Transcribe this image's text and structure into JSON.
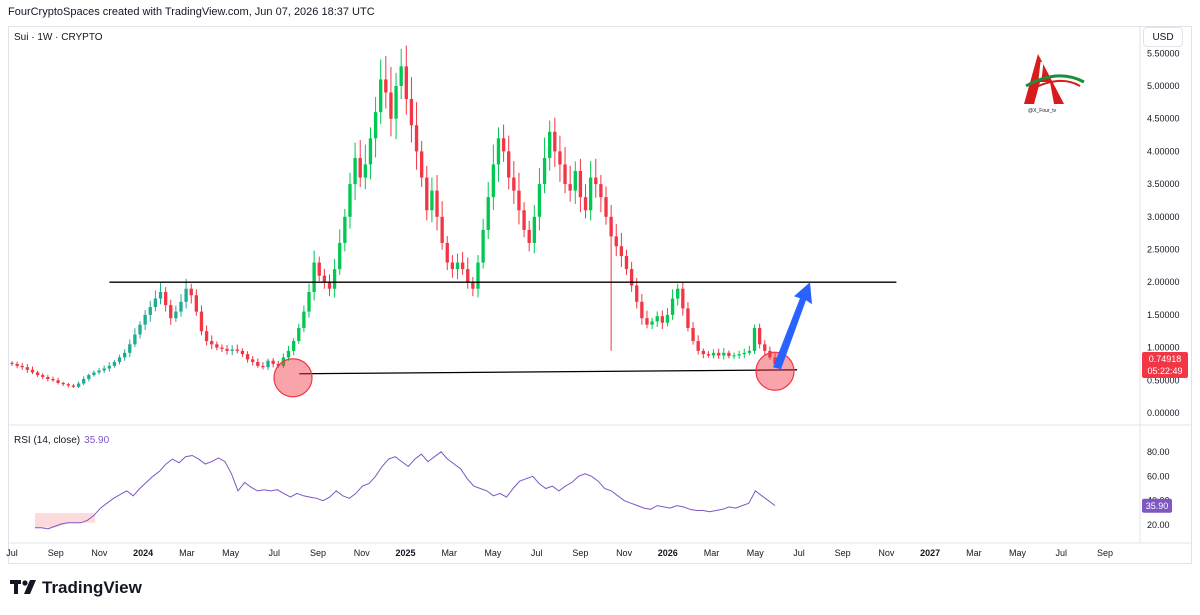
{
  "header": {
    "text": "FourCryptoSpaces created with TradingView.com, Jun 07, 2026 18:37 UTC"
  },
  "symbol": {
    "label": "Sui · 1W · CRYPTO"
  },
  "currency": "USD",
  "rsi": {
    "label": "RSI (14, close)",
    "value": "35.90"
  },
  "price_tag": {
    "price": "0.74918",
    "countdown": "05:22:49"
  },
  "brand": {
    "handle": "@X_Four_tv"
  },
  "footer": {
    "brand": "TradingView"
  },
  "colors": {
    "up": "#22ab94",
    "up_bright": "#00c853",
    "down": "#f23645",
    "rsi_line": "#7e57c2",
    "arrow": "#2962ff",
    "circle": "#f23645",
    "price_tag_bg": "#f23645",
    "rsi_tag_bg": "#7e57c2"
  },
  "chart_data": {
    "type": "candlestick",
    "title": "Sui · 1W · CRYPTO",
    "price_axis": {
      "ticks": [
        "5.50000",
        "5.00000",
        "4.50000",
        "4.00000",
        "3.50000",
        "3.00000",
        "2.50000",
        "2.00000",
        "1.50000",
        "1.00000",
        "0.50000",
        "0.00000"
      ],
      "ylim": [
        0,
        5.55
      ]
    },
    "rsi_axis": {
      "ticks": [
        "80.00",
        "60.00",
        "40.00",
        "20.00"
      ],
      "ylim": [
        12,
        88
      ]
    },
    "time_axis": [
      {
        "label": "Jul",
        "bold": false
      },
      {
        "label": "Sep",
        "bold": false
      },
      {
        "label": "Nov",
        "bold": false
      },
      {
        "label": "2024",
        "bold": true
      },
      {
        "label": "Mar",
        "bold": false
      },
      {
        "label": "May",
        "bold": false
      },
      {
        "label": "Jul",
        "bold": false
      },
      {
        "label": "Sep",
        "bold": false
      },
      {
        "label": "Nov",
        "bold": false
      },
      {
        "label": "2025",
        "bold": true
      },
      {
        "label": "Mar",
        "bold": false
      },
      {
        "label": "May",
        "bold": false
      },
      {
        "label": "Jul",
        "bold": false
      },
      {
        "label": "Sep",
        "bold": false
      },
      {
        "label": "Nov",
        "bold": false
      },
      {
        "label": "2026",
        "bold": true
      },
      {
        "label": "Mar",
        "bold": false
      },
      {
        "label": "May",
        "bold": false
      },
      {
        "label": "Jul",
        "bold": false
      },
      {
        "label": "Sep",
        "bold": false
      },
      {
        "label": "Nov",
        "bold": false
      },
      {
        "label": "2027",
        "bold": true
      },
      {
        "label": "Mar",
        "bold": false
      },
      {
        "label": "May",
        "bold": false
      },
      {
        "label": "Jul",
        "bold": false
      },
      {
        "label": "Sep",
        "bold": false
      }
    ],
    "price_path": [
      0.75,
      0.72,
      0.7,
      0.66,
      0.62,
      0.58,
      0.55,
      0.52,
      0.5,
      0.46,
      0.44,
      0.42,
      0.4,
      0.45,
      0.52,
      0.58,
      0.62,
      0.65,
      0.68,
      0.72,
      0.78,
      0.85,
      0.92,
      1.05,
      1.2,
      1.35,
      1.5,
      1.62,
      1.75,
      1.85,
      1.65,
      1.45,
      1.55,
      1.7,
      1.9,
      1.8,
      1.55,
      1.25,
      1.1,
      1.05,
      1.0,
      0.98,
      0.95,
      0.97,
      0.95,
      0.9,
      0.82,
      0.78,
      0.72,
      0.7,
      0.8,
      0.75,
      0.72,
      0.85,
      0.95,
      1.1,
      1.3,
      1.55,
      1.85,
      2.3,
      2.1,
      2.0,
      1.9,
      2.2,
      2.6,
      3.0,
      3.5,
      3.9,
      3.6,
      3.8,
      4.2,
      4.6,
      5.1,
      4.9,
      4.5,
      5.0,
      5.3,
      4.8,
      4.4,
      4.0,
      3.6,
      3.1,
      3.4,
      3.0,
      2.6,
      2.3,
      2.2,
      2.3,
      2.2,
      2.0,
      1.9,
      2.3,
      2.8,
      3.3,
      3.8,
      4.2,
      4.0,
      3.6,
      3.4,
      3.1,
      2.8,
      2.6,
      3.0,
      3.5,
      3.9,
      4.3,
      4.0,
      3.8,
      3.5,
      3.4,
      3.7,
      3.3,
      3.1,
      3.6,
      3.5,
      3.3,
      3.0,
      2.7,
      2.55,
      2.4,
      2.2,
      1.95,
      1.7,
      1.45,
      1.35,
      1.4,
      1.48,
      1.38,
      1.5,
      1.75,
      1.9,
      1.6,
      1.3,
      1.1,
      0.95,
      0.9,
      0.88,
      0.92,
      0.88,
      0.92,
      0.87,
      0.88,
      0.9,
      0.92,
      0.95,
      1.3,
      1.05,
      0.95,
      0.85,
      0.75
    ],
    "rsi_path": [
      18,
      18,
      17,
      19,
      21,
      22,
      22,
      22,
      24,
      28,
      34,
      38,
      42,
      45,
      48,
      44,
      50,
      55,
      60,
      64,
      70,
      74,
      71,
      76,
      77,
      74,
      70,
      72,
      75,
      72,
      62,
      48,
      55,
      51,
      48,
      49,
      48,
      49,
      46,
      43,
      46,
      44,
      43,
      42,
      40,
      43,
      48,
      44,
      42,
      46,
      52,
      54,
      60,
      68,
      74,
      76,
      72,
      68,
      74,
      78,
      72,
      76,
      80,
      74,
      70,
      66,
      58,
      52,
      50,
      48,
      44,
      46,
      43,
      50,
      56,
      58,
      60,
      54,
      50,
      52,
      48,
      52,
      55,
      60,
      62,
      60,
      56,
      50,
      48,
      44,
      40,
      38,
      36,
      34,
      33,
      36,
      35,
      34,
      36,
      35,
      33,
      32,
      32,
      31,
      32,
      33,
      35,
      34,
      36,
      38,
      48,
      44,
      40,
      36
    ],
    "support_line": {
      "start": {
        "date": "2024-07",
        "price": 0.6
      },
      "end": {
        "date": "2026-06",
        "price": 0.66
      }
    },
    "resistance_line": {
      "start": {
        "date": "2023-11",
        "price": 2.0
      },
      "end": {
        "date": "2026-11",
        "price": 2.0
      }
    },
    "circles": [
      {
        "date": "2024-08",
        "price": 0.6
      },
      {
        "date": "2026-06",
        "price": 0.7
      }
    ],
    "arrow": {
      "from": {
        "date": "2026-06",
        "price": 0.7
      },
      "to": {
        "date": "2026-07",
        "price": 2.0
      }
    }
  }
}
